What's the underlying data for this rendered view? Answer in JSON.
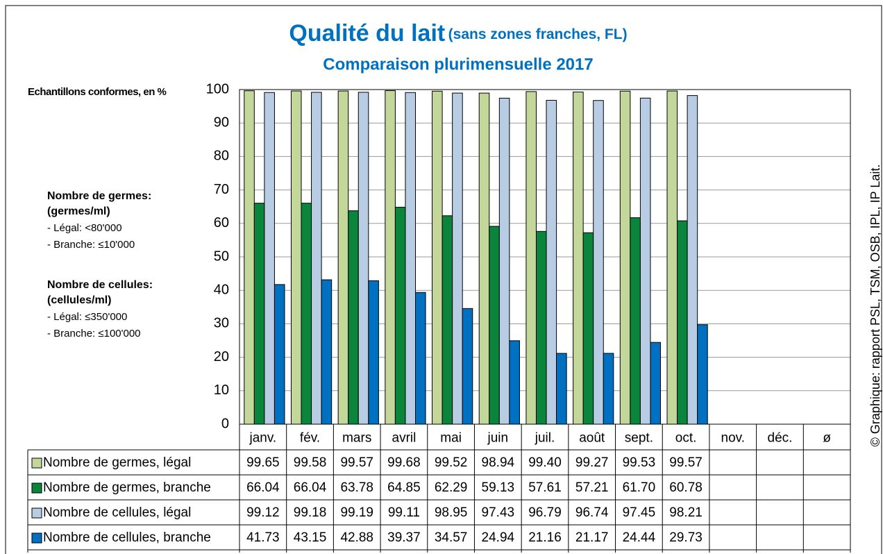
{
  "chart_data": {
    "type": "bar",
    "title": "Qualité du lait",
    "title_note": "(sans zones franches, FL)",
    "subtitle": "Comparaison plurimensuelle 2017",
    "y_label": "Echantillons conformes, en %",
    "categories": [
      "janv.",
      "fév.",
      "mars",
      "avril",
      "mai",
      "juin",
      "juil.",
      "août",
      "sept.",
      "oct.",
      "nov.",
      "déc.",
      "ø"
    ],
    "series": [
      {
        "name": "Nombre de germes, légal",
        "color": "#c4d79b",
        "values": [
          99.65,
          99.58,
          99.57,
          99.68,
          99.52,
          98.94,
          99.4,
          99.27,
          99.53,
          99.57,
          null,
          null,
          null
        ],
        "value_labels": [
          "99.65",
          "99.58",
          "99.57",
          "99.68",
          "99.52",
          "98.94",
          "99.40",
          "99.27",
          "99.53",
          "99.57",
          null,
          null,
          null
        ]
      },
      {
        "name": "Nombre de germes, branche",
        "color": "#0b843c",
        "values": [
          66.04,
          66.04,
          63.78,
          64.85,
          62.29,
          59.13,
          57.61,
          57.21,
          61.7,
          60.78,
          null,
          null,
          null
        ],
        "value_labels": [
          "66.04",
          "66.04",
          "63.78",
          "64.85",
          "62.29",
          "59.13",
          "57.61",
          "57.21",
          "61.70",
          "60.78",
          null,
          null,
          null
        ]
      },
      {
        "name": "Nombre de cellules, légal",
        "color": "#b8cce4",
        "values": [
          99.12,
          99.18,
          99.19,
          99.11,
          98.95,
          97.43,
          96.79,
          96.74,
          97.45,
          98.21,
          null,
          null,
          null
        ],
        "value_labels": [
          "99.12",
          "99.18",
          "99.19",
          "99.11",
          "98.95",
          "97.43",
          "96.79",
          "96.74",
          "97.45",
          "98.21",
          null,
          null,
          null
        ]
      },
      {
        "name": "Nombre de cellules, branche",
        "color": "#0070c0",
        "values": [
          41.73,
          43.15,
          42.88,
          39.37,
          34.57,
          24.94,
          21.16,
          21.17,
          24.44,
          29.73,
          null,
          null,
          null
        ],
        "value_labels": [
          "41.73",
          "43.15",
          "42.88",
          "39.37",
          "34.57",
          "24.94",
          "21.16",
          "21.17",
          "24.44",
          "29.73",
          null,
          null,
          null
        ]
      }
    ],
    "ylim": [
      0,
      100
    ],
    "yticks": [
      0,
      10,
      20,
      30,
      40,
      50,
      60,
      70,
      80,
      90,
      100
    ],
    "grid": true,
    "notes": [
      {
        "heading": "Nombre de germes:",
        "unit": "(germes/ml)",
        "lines": [
          "- Légal: <80'000",
          "- Branche: ≤10'000"
        ]
      },
      {
        "heading": "Nombre de cellules:",
        "unit": "(cellules/ml)",
        "lines": [
          "- Légal: ≤350'000",
          "- Branche: ≤100'000"
        ]
      }
    ],
    "source": "© Graphique: rapport PSL, TSM, OSB, IPL, IP Lait."
  }
}
